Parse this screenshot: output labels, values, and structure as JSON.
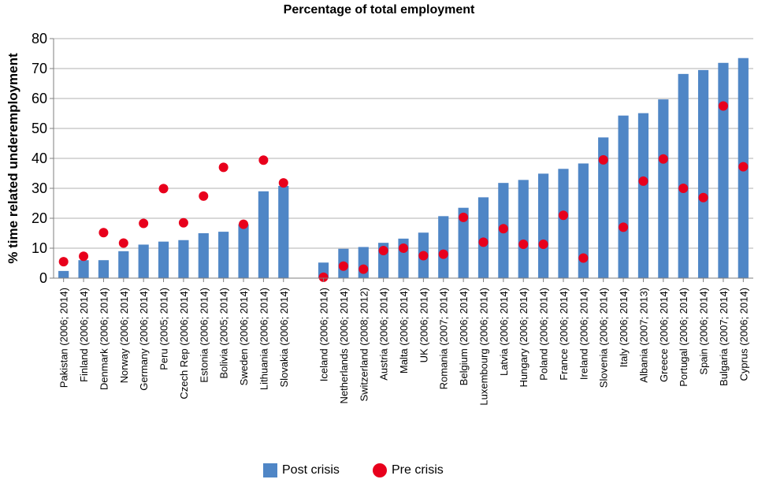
{
  "chart_data": {
    "type": "bar",
    "title": "Percentage of total employment",
    "ylabel": "% time related underemployment",
    "xlabel": "",
    "ylim": [
      0,
      80
    ],
    "yticks": [
      0,
      10,
      20,
      30,
      40,
      50,
      60,
      70,
      80
    ],
    "grid": true,
    "legend_placement": "bottom-center",
    "colors": {
      "post": "#4f86c6",
      "pre": "#e8001c",
      "grid": "#b0b0b0",
      "axis": "#7f7f7f"
    },
    "groups": [
      {
        "categories": [
          "Pakistan (2006; 2014)",
          "Finland (2006; 2014)",
          "Denmark (2006; 2014)",
          "Norway (2006; 2014)",
          "Germany (2006; 2014)",
          "Peru (2005; 2014)",
          "Czech Rep (2006; 2014)",
          "Estonia (2006; 2014)",
          "Bolivia (2005; 2014)",
          "Sweden (2006; 2014)",
          "Lithuania (2006; 2014)",
          "Slovakia (2006; 2014)"
        ],
        "post": [
          2.4,
          6.0,
          6.0,
          9.0,
          11.2,
          12.2,
          12.7,
          15.0,
          15.5,
          18.0,
          29.0,
          30.8
        ],
        "pre": [
          5.5,
          7.3,
          15.2,
          11.7,
          18.3,
          29.9,
          18.5,
          27.4,
          37.0,
          18.0,
          39.4,
          31.8
        ]
      },
      {
        "categories": [
          "Iceland (2006; 2014)",
          "Netherlands (2006; 2014)",
          "Switzerland (2008; 2012)",
          "Austria (2006; 2014)",
          "Malta (2006; 2014)",
          "UK (2006; 2014)",
          "Romania (2007; 2014)",
          "Belgium (2006; 2014)",
          "Luxembourg (2006; 2014)",
          "Latvia (2006; 2014)",
          "Hungary (2006; 2014)",
          "Poland (2006; 2014)",
          "France (2006; 2014)",
          "Ireland (2006; 2014)",
          "Slovenia (2006; 2014)",
          "Italy (2006; 2014)",
          "Albania (2007; 2013)",
          "Greece (2006; 2014)",
          "Portugal (2006; 2014)",
          "Spain (2006; 2014)",
          "Bulgaria (2007; 2014)",
          "Cyprus (2006; 2014)"
        ],
        "post": [
          5.2,
          9.8,
          10.4,
          11.8,
          13.2,
          15.2,
          20.7,
          23.5,
          27.0,
          31.8,
          32.8,
          34.9,
          36.5,
          38.3,
          47.0,
          54.3,
          55.1,
          59.7,
          68.2,
          69.5,
          71.9,
          73.5
        ],
        "pre": [
          0.3,
          4.0,
          3.0,
          9.2,
          10.0,
          7.5,
          8.0,
          20.3,
          12.0,
          16.5,
          11.3,
          11.3,
          21.0,
          6.7,
          39.5,
          17.0,
          32.4,
          39.8,
          30.0,
          26.9,
          57.5,
          37.2
        ]
      }
    ],
    "series": [
      {
        "name": "Post crisis",
        "key": "post"
      },
      {
        "name": "Pre crisis",
        "key": "pre"
      }
    ]
  }
}
